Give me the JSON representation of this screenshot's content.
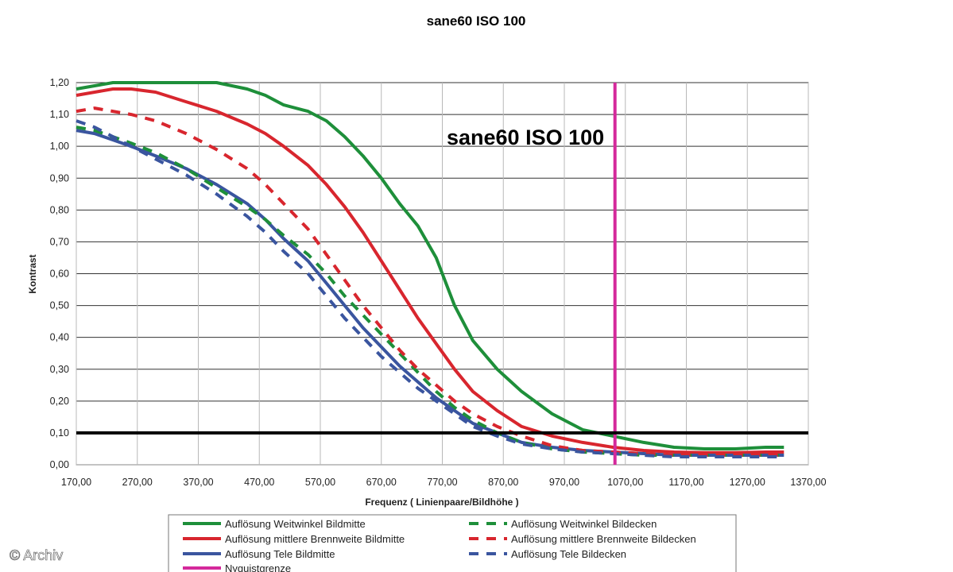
{
  "chart_data": {
    "type": "line",
    "title": "sane60   ISO 100",
    "inner_title": "sane60   ISO 100",
    "xlabel": "Frequenz ( Linienpaare/Bildhöhe )",
    "ylabel": "Kontrast",
    "xlim": [
      170,
      1370
    ],
    "ylim": [
      0,
      1.2
    ],
    "x_ticks": [
      "170,00",
      "270,00",
      "370,00",
      "470,00",
      "570,00",
      "670,00",
      "770,00",
      "870,00",
      "970,00",
      "1070,00",
      "1170,00",
      "1270,00",
      "1370,00"
    ],
    "y_ticks": [
      "0,00",
      "0,10",
      "0,20",
      "0,30",
      "0,40",
      "0,50",
      "0,60",
      "0,70",
      "0,80",
      "0,90",
      "1,00",
      "1,10",
      "1,20"
    ],
    "grid": true,
    "legend_position": "bottom",
    "series": [
      {
        "name": "Auflösung Weitwinkel Bildmitte",
        "color": "#1e8f3a",
        "dash": false,
        "x": [
          170,
          200,
          230,
          260,
          300,
          350,
          400,
          450,
          480,
          510,
          550,
          580,
          610,
          640,
          670,
          700,
          730,
          760,
          790,
          820,
          860,
          900,
          950,
          1000,
          1050,
          1100,
          1150,
          1200,
          1250,
          1300,
          1330
        ],
        "y": [
          1.18,
          1.19,
          1.2,
          1.21,
          1.215,
          1.21,
          1.2,
          1.18,
          1.16,
          1.13,
          1.11,
          1.08,
          1.03,
          0.97,
          0.9,
          0.82,
          0.75,
          0.65,
          0.5,
          0.39,
          0.3,
          0.23,
          0.16,
          0.11,
          0.09,
          0.07,
          0.055,
          0.05,
          0.05,
          0.055,
          0.055
        ]
      },
      {
        "name": "Auflösung mittlere Brennweite Bildmitte",
        "color": "#d8262e",
        "dash": false,
        "x": [
          170,
          200,
          230,
          260,
          300,
          350,
          400,
          450,
          480,
          510,
          550,
          580,
          610,
          640,
          670,
          700,
          730,
          760,
          790,
          820,
          860,
          900,
          950,
          1000,
          1050,
          1100,
          1150,
          1200,
          1250,
          1300,
          1330
        ],
        "y": [
          1.16,
          1.17,
          1.18,
          1.18,
          1.17,
          1.14,
          1.11,
          1.07,
          1.04,
          1.0,
          0.94,
          0.88,
          0.81,
          0.73,
          0.64,
          0.55,
          0.46,
          0.38,
          0.3,
          0.23,
          0.17,
          0.12,
          0.09,
          0.07,
          0.055,
          0.045,
          0.04,
          0.038,
          0.038,
          0.04,
          0.04
        ]
      },
      {
        "name": "Auflösung Tele Bildmitte",
        "color": "#3a559f",
        "dash": false,
        "x": [
          170,
          200,
          230,
          260,
          300,
          350,
          400,
          450,
          480,
          510,
          550,
          580,
          610,
          640,
          670,
          700,
          730,
          760,
          790,
          820,
          860,
          900,
          950,
          1000,
          1050,
          1100,
          1150,
          1200,
          1250,
          1300,
          1330
        ],
        "y": [
          1.05,
          1.04,
          1.02,
          1.0,
          0.97,
          0.93,
          0.88,
          0.82,
          0.77,
          0.71,
          0.64,
          0.57,
          0.5,
          0.43,
          0.37,
          0.31,
          0.26,
          0.21,
          0.17,
          0.13,
          0.1,
          0.07,
          0.055,
          0.045,
          0.04,
          0.035,
          0.03,
          0.03,
          0.03,
          0.03,
          0.03
        ]
      },
      {
        "name": "Auflösung Weitwinkel Bildecken",
        "color": "#1e8f3a",
        "dash": true,
        "x": [
          170,
          200,
          230,
          260,
          300,
          350,
          400,
          450,
          480,
          510,
          550,
          580,
          610,
          640,
          670,
          700,
          730,
          760,
          790,
          820,
          860,
          900,
          950,
          1000,
          1050,
          1100,
          1150,
          1200,
          1250,
          1300,
          1330
        ],
        "y": [
          1.06,
          1.05,
          1.03,
          1.01,
          0.98,
          0.93,
          0.87,
          0.81,
          0.77,
          0.72,
          0.66,
          0.6,
          0.53,
          0.47,
          0.41,
          0.35,
          0.29,
          0.23,
          0.18,
          0.14,
          0.1,
          0.07,
          0.05,
          0.04,
          0.035,
          0.03,
          0.03,
          0.03,
          0.03,
          0.03,
          0.03
        ]
      },
      {
        "name": "Auflösung mittlere Brennweite Bildecken",
        "color": "#d8262e",
        "dash": true,
        "x": [
          170,
          200,
          230,
          260,
          300,
          350,
          400,
          450,
          480,
          510,
          550,
          580,
          610,
          640,
          670,
          700,
          730,
          760,
          790,
          820,
          860,
          900,
          950,
          1000,
          1050,
          1100,
          1150,
          1200,
          1250,
          1300,
          1330
        ],
        "y": [
          1.11,
          1.12,
          1.11,
          1.1,
          1.08,
          1.04,
          0.99,
          0.93,
          0.88,
          0.82,
          0.74,
          0.66,
          0.58,
          0.5,
          0.43,
          0.36,
          0.3,
          0.25,
          0.2,
          0.16,
          0.12,
          0.09,
          0.06,
          0.045,
          0.04,
          0.035,
          0.03,
          0.03,
          0.03,
          0.03,
          0.03
        ]
      },
      {
        "name": "Auflösung Tele Bildecken",
        "color": "#3a559f",
        "dash": true,
        "x": [
          170,
          200,
          230,
          260,
          300,
          350,
          400,
          450,
          480,
          510,
          550,
          580,
          610,
          640,
          670,
          700,
          730,
          760,
          790,
          820,
          860,
          900,
          950,
          1000,
          1050,
          1100,
          1150,
          1200,
          1250,
          1300,
          1330
        ],
        "y": [
          1.08,
          1.06,
          1.03,
          1.0,
          0.96,
          0.91,
          0.85,
          0.78,
          0.73,
          0.67,
          0.6,
          0.53,
          0.46,
          0.4,
          0.34,
          0.29,
          0.24,
          0.2,
          0.16,
          0.12,
          0.09,
          0.065,
          0.05,
          0.04,
          0.035,
          0.03,
          0.025,
          0.025,
          0.025,
          0.025,
          0.025
        ]
      },
      {
        "name": "Nyquistgrenze",
        "color": "#d4299b",
        "dash": false,
        "x": [
          1053,
          1053
        ],
        "y": [
          0,
          1.2
        ]
      }
    ],
    "reference_line": {
      "y": 0.1,
      "color": "#000000"
    }
  },
  "watermark": "© Archiv"
}
